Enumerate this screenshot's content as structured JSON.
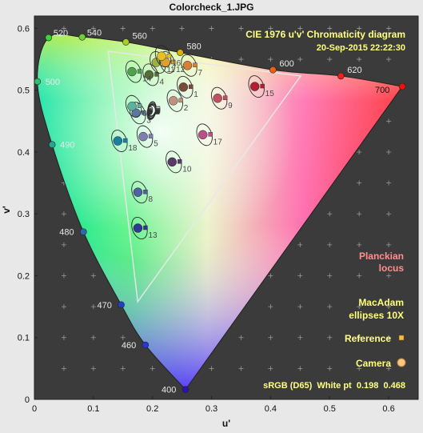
{
  "window_title": "Colorcheck_1.JPG",
  "chart_data": {
    "type": "scatter",
    "title": "CIE 1976 u'v' Chromaticity diagram",
    "subtitle": "20-Sep-2015 22:22:30",
    "xlabel": "u'",
    "ylabel": "v'",
    "xlim": [
      0,
      0.65
    ],
    "ylim": [
      0,
      0.62
    ],
    "x_ticks": [
      "0",
      "0.1",
      "0.2",
      "0.3",
      "0.4",
      "0.5",
      "0.6"
    ],
    "y_ticks": [
      "0",
      "0.1",
      "0.2",
      "0.3",
      "0.4",
      "0.5",
      "0.6"
    ],
    "background_color": "#3b3b3b",
    "annotation_color": "#ffff80",
    "locus_label_color": "#ff8f8f",
    "planckian_label": [
      "Planckian",
      "locus"
    ],
    "macadam_label": [
      "MacAdam",
      "ellipses 10X"
    ],
    "reference_label": "Reference",
    "camera_label": "Camera",
    "footer": "sRGB (D65)  White pt  0.198  0.468",
    "spectral_locus": [
      {
        "nm": "400",
        "u": 0.256,
        "v": 0.016,
        "color": "#3010b0"
      },
      {
        "nm": "460",
        "u": 0.188,
        "v": 0.088,
        "color": "#2838d0"
      },
      {
        "nm": "470",
        "u": 0.147,
        "v": 0.153,
        "color": "#2040c8"
      },
      {
        "nm": "480",
        "u": 0.083,
        "v": 0.271,
        "color": "#3068b0"
      },
      {
        "nm": "490",
        "u": 0.03,
        "v": 0.412,
        "color": "#20a890"
      },
      {
        "nm": "500",
        "u": 0.005,
        "v": 0.514,
        "color": "#30c070"
      },
      {
        "nm": "520",
        "u": 0.024,
        "v": 0.585,
        "color": "#40d040"
      },
      {
        "nm": "540",
        "u": 0.081,
        "v": 0.586,
        "color": "#70d030"
      },
      {
        "nm": "560",
        "u": 0.155,
        "v": 0.578,
        "color": "#a8d020"
      },
      {
        "nm": "580",
        "u": 0.247,
        "v": 0.561,
        "color": "#e0b000"
      },
      {
        "nm": "600",
        "u": 0.404,
        "v": 0.533,
        "color": "#f06010"
      },
      {
        "nm": "620",
        "u": 0.519,
        "v": 0.523,
        "color": "#f02020"
      },
      {
        "nm": "700",
        "u": 0.623,
        "v": 0.506,
        "color": "#f01010"
      }
    ],
    "srgb_gamut": [
      [
        0.451,
        0.523
      ],
      [
        0.125,
        0.563
      ],
      [
        0.175,
        0.158
      ]
    ],
    "patches": [
      {
        "id": "1",
        "u": 0.255,
        "v": 0.505,
        "color": "#7a4a3a"
      },
      {
        "id": "2",
        "u": 0.238,
        "v": 0.483,
        "color": "#c09080"
      },
      {
        "id": "3",
        "u": 0.175,
        "v": 0.463,
        "color": "#5a78a0"
      },
      {
        "id": "4",
        "u": 0.197,
        "v": 0.525,
        "color": "#586e3a"
      },
      {
        "id": "5",
        "u": 0.187,
        "v": 0.425,
        "color": "#8080b0"
      },
      {
        "id": "6",
        "u": 0.168,
        "v": 0.474,
        "color": "#60b0a0"
      },
      {
        "id": "7",
        "u": 0.262,
        "v": 0.54,
        "color": "#d88030"
      },
      {
        "id": "8",
        "u": 0.178,
        "v": 0.335,
        "color": "#5060a0"
      },
      {
        "id": "9",
        "u": 0.313,
        "v": 0.487,
        "color": "#c05060"
      },
      {
        "id": "10",
        "u": 0.236,
        "v": 0.384,
        "color": "#5a3a68"
      },
      {
        "id": "11",
        "u": 0.209,
        "v": 0.545,
        "color": "#a0b040"
      },
      {
        "id": "12",
        "u": 0.225,
        "v": 0.545,
        "color": "#e0a030"
      },
      {
        "id": "13",
        "u": 0.178,
        "v": 0.277,
        "color": "#303890"
      },
      {
        "id": "14",
        "u": 0.168,
        "v": 0.53,
        "color": "#50a050"
      },
      {
        "id": "15",
        "u": 0.376,
        "v": 0.506,
        "color": "#b02030"
      },
      {
        "id": "16",
        "u": 0.218,
        "v": 0.555,
        "color": "#e8c020"
      },
      {
        "id": "17",
        "u": 0.288,
        "v": 0.428,
        "color": "#b8508a"
      },
      {
        "id": "18",
        "u": 0.144,
        "v": 0.418,
        "color": "#1a80a0"
      },
      {
        "id": "19",
        "u": 0.199,
        "v": 0.47,
        "color": "#f0f0f0"
      },
      {
        "id": "20",
        "u": 0.199,
        "v": 0.469,
        "color": "#c8c8c8"
      },
      {
        "id": "21",
        "u": 0.199,
        "v": 0.467,
        "color": "#a0a0a0"
      },
      {
        "id": "22",
        "u": 0.199,
        "v": 0.466,
        "color": "#7a7a7a"
      },
      {
        "id": "23",
        "u": 0.198,
        "v": 0.465,
        "color": "#555555"
      },
      {
        "id": "24",
        "u": 0.198,
        "v": 0.464,
        "color": "#333333"
      }
    ],
    "patch_labels": [
      "1",
      "2",
      "3",
      "4",
      "5",
      "6",
      "7",
      "8",
      "9",
      "10",
      "11",
      "12",
      "13",
      "14",
      "15",
      "16",
      "17",
      "18"
    ],
    "grid": true,
    "legend_position": "bottom-right"
  }
}
